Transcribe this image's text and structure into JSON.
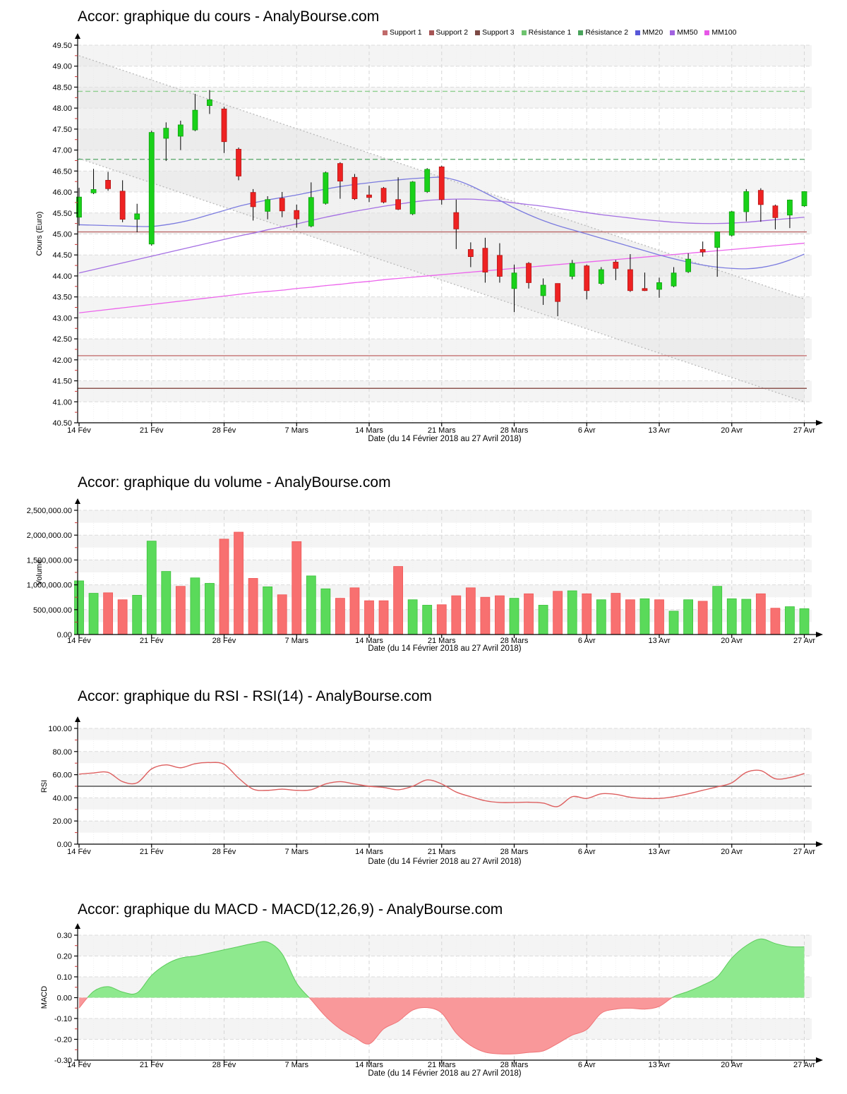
{
  "page": {
    "background": "#ffffff"
  },
  "xaxis": {
    "tick_days": [
      0,
      5,
      10,
      15,
      20,
      25,
      30,
      35,
      40,
      45,
      50
    ],
    "tick_labels": [
      "14 Fév",
      "21 Fév",
      "28 Fév",
      "7 Mars",
      "14 Mars",
      "21 Mars",
      "28 Mars",
      "6 Avr",
      "13 Avr",
      "20 Avr",
      "27 Avr"
    ],
    "n_days": 51
  },
  "chart_data": [
    {
      "type": "candlestick",
      "title": "Accor: graphique du cours - AnalyBourse.com",
      "ylabel": "Cours (Euro)",
      "xlabel": "Date (du 14 Février 2018 au 27 Avril 2018)",
      "ylim": [
        40.5,
        49.5
      ],
      "ytick": 0.5,
      "legend": [
        {
          "label": "Support 1",
          "color": "#c06a6a"
        },
        {
          "label": "Support 2",
          "color": "#a65454"
        },
        {
          "label": "Support 3",
          "color": "#7d4a45"
        },
        {
          "label": "Résistance 1",
          "color": "#6ec46e"
        },
        {
          "label": "Résistance 2",
          "color": "#4aa45c"
        },
        {
          "label": "MM20",
          "color": "#5757d8"
        },
        {
          "label": "MM50",
          "color": "#a263e0"
        },
        {
          "label": "MM100",
          "color": "#e757e7"
        }
      ],
      "supports": [
        {
          "label": "Support 1",
          "value": 45.05,
          "color": "#bb6868"
        },
        {
          "label": "Support 2",
          "value": 42.1,
          "color": "#c47272"
        },
        {
          "label": "Support 3",
          "value": 41.32,
          "color": "#8e5752"
        }
      ],
      "resistances": [
        {
          "label": "Résistance 1",
          "value": 48.4,
          "color": "#8fce8f"
        },
        {
          "label": "Résistance 2",
          "value": 46.78,
          "color": "#63ad74"
        }
      ],
      "channel": {
        "upper": [
          49.25,
          43.45
        ],
        "lower": [
          46.8,
          41.0
        ],
        "fill": "#e4e4e4",
        "line_color": "#bdbdbd"
      },
      "colors": {
        "up_fill": "#19d119",
        "up_stroke": "#0da00d",
        "down_fill": "#ee2222",
        "down_stroke": "#b31414"
      },
      "candles": [
        [
          45.4,
          46.1,
          45.2,
          45.88,
          "g"
        ],
        [
          45.98,
          46.55,
          45.95,
          46.06,
          "g"
        ],
        [
          46.28,
          46.48,
          46.03,
          46.08,
          "r"
        ],
        [
          46.02,
          46.28,
          45.28,
          45.35,
          "r"
        ],
        [
          45.35,
          45.72,
          45.04,
          45.48,
          "g"
        ],
        [
          44.76,
          47.46,
          44.72,
          47.42,
          "g"
        ],
        [
          47.28,
          47.66,
          46.74,
          47.52,
          "g"
        ],
        [
          47.33,
          47.7,
          47.0,
          47.6,
          "g"
        ],
        [
          47.48,
          48.34,
          47.45,
          47.95,
          "g"
        ],
        [
          48.06,
          48.43,
          47.86,
          48.2,
          "g"
        ],
        [
          47.98,
          48.03,
          46.93,
          47.2,
          "r"
        ],
        [
          47.02,
          47.06,
          46.28,
          46.38,
          "r"
        ],
        [
          45.99,
          46.07,
          45.32,
          45.65,
          "r"
        ],
        [
          45.54,
          45.9,
          45.35,
          45.82,
          "g"
        ],
        [
          45.85,
          46.0,
          45.4,
          45.55,
          "r"
        ],
        [
          45.56,
          45.7,
          45.15,
          45.36,
          "r"
        ],
        [
          45.19,
          46.23,
          45.16,
          45.87,
          "g"
        ],
        [
          45.73,
          46.49,
          45.7,
          46.46,
          "g"
        ],
        [
          46.68,
          46.71,
          45.84,
          46.26,
          "r"
        ],
        [
          46.35,
          46.43,
          45.81,
          45.84,
          "r"
        ],
        [
          45.93,
          46.15,
          45.76,
          45.87,
          "r"
        ],
        [
          46.09,
          46.12,
          45.73,
          45.76,
          "r"
        ],
        [
          45.82,
          46.35,
          45.57,
          45.59,
          "r"
        ],
        [
          45.48,
          46.26,
          45.45,
          46.24,
          "g"
        ],
        [
          46.01,
          46.57,
          45.98,
          46.54,
          "g"
        ],
        [
          46.6,
          46.63,
          45.7,
          45.82,
          "r"
        ],
        [
          45.51,
          45.82,
          44.64,
          45.12,
          "r"
        ],
        [
          44.63,
          44.8,
          44.21,
          44.46,
          "r"
        ],
        [
          44.66,
          44.91,
          43.84,
          44.09,
          "r"
        ],
        [
          44.49,
          44.78,
          43.84,
          43.99,
          "r"
        ],
        [
          43.7,
          44.27,
          43.14,
          44.07,
          "g"
        ],
        [
          44.3,
          44.33,
          43.7,
          43.84,
          "r"
        ],
        [
          43.53,
          43.94,
          43.31,
          43.78,
          "g"
        ],
        [
          43.82,
          43.82,
          43.04,
          43.39,
          "r"
        ],
        [
          43.99,
          44.38,
          43.92,
          44.3,
          "g"
        ],
        [
          44.24,
          44.27,
          43.44,
          43.65,
          "r"
        ],
        [
          43.82,
          44.21,
          43.79,
          44.15,
          "g"
        ],
        [
          44.33,
          44.38,
          43.9,
          44.18,
          "r"
        ],
        [
          44.15,
          44.52,
          43.62,
          43.65,
          "r"
        ],
        [
          43.7,
          44.08,
          43.64,
          43.65,
          "r"
        ],
        [
          43.68,
          43.96,
          43.48,
          43.84,
          "g"
        ],
        [
          43.76,
          44.21,
          43.73,
          44.07,
          "g"
        ],
        [
          44.1,
          44.54,
          44.07,
          44.4,
          "g"
        ],
        [
          44.63,
          44.82,
          44.46,
          44.57,
          "r"
        ],
        [
          44.68,
          45.06,
          43.98,
          45.05,
          "g"
        ],
        [
          44.97,
          45.55,
          44.94,
          45.53,
          "g"
        ],
        [
          45.53,
          46.07,
          45.3,
          46.01,
          "g"
        ],
        [
          46.04,
          46.09,
          45.29,
          45.7,
          "r"
        ],
        [
          45.67,
          45.7,
          45.11,
          45.39,
          "r"
        ],
        [
          45.45,
          45.82,
          45.14,
          45.81,
          "g"
        ],
        [
          45.67,
          46.02,
          45.65,
          46.01,
          "g"
        ]
      ],
      "overlays": {
        "mm20": {
          "label": "MM20",
          "color": "#7b7bdf",
          "values": [
            45.22,
            45.21,
            45.2,
            45.19,
            45.18,
            45.18,
            45.22,
            45.28,
            45.36,
            45.46,
            45.56,
            45.66,
            45.74,
            45.81,
            45.87,
            45.93,
            46.0,
            46.07,
            46.13,
            46.18,
            46.22,
            46.26,
            46.29,
            46.32,
            46.34,
            46.35,
            46.28,
            46.15,
            45.98,
            45.8,
            45.62,
            45.46,
            45.32,
            45.2,
            45.1,
            45.0,
            44.9,
            44.8,
            44.7,
            44.6,
            44.5,
            44.41,
            44.33,
            44.26,
            44.21,
            44.18,
            44.17,
            44.2,
            44.27,
            44.38,
            44.52
          ]
        },
        "mm50": {
          "label": "MM50",
          "color": "#a46fe3",
          "values": [
            44.07,
            44.15,
            44.23,
            44.31,
            44.39,
            44.47,
            44.55,
            44.63,
            44.71,
            44.79,
            44.87,
            44.95,
            45.02,
            45.1,
            45.17,
            45.24,
            45.32,
            45.4,
            45.47,
            45.54,
            45.6,
            45.66,
            45.71,
            45.76,
            45.8,
            45.82,
            45.83,
            45.83,
            45.81,
            45.78,
            45.74,
            45.7,
            45.66,
            45.61,
            45.56,
            45.51,
            45.46,
            45.42,
            45.38,
            45.34,
            45.31,
            45.28,
            45.26,
            45.25,
            45.25,
            45.26,
            45.28,
            45.31,
            45.34,
            45.37,
            45.4
          ]
        },
        "mm100": {
          "label": "MM100",
          "color": "#ec64ec",
          "values": [
            43.12,
            43.16,
            43.2,
            43.24,
            43.28,
            43.32,
            43.36,
            43.4,
            43.44,
            43.48,
            43.52,
            43.56,
            43.6,
            43.63,
            43.66,
            43.7,
            43.73,
            43.77,
            43.8,
            43.84,
            43.87,
            43.91,
            43.94,
            43.97,
            44.0,
            44.03,
            44.06,
            44.09,
            44.12,
            44.15,
            44.18,
            44.21,
            44.24,
            44.27,
            44.3,
            44.33,
            44.36,
            44.39,
            44.42,
            44.45,
            44.48,
            44.51,
            44.54,
            44.57,
            44.6,
            44.63,
            44.66,
            44.69,
            44.72,
            44.75,
            44.78
          ]
        }
      }
    },
    {
      "type": "bar",
      "title": "Accor: graphique du volume - AnalyBourse.com",
      "ylabel": "Volume",
      "xlabel": "Date (du 14 Février 2018 au 27 Avril 2018)",
      "ylim": [
        0,
        2500000
      ],
      "ytick": 500000,
      "colors": {
        "up_fill": "#5ada5a",
        "up_stroke": "#3cc23c",
        "down_fill": "#f87070",
        "down_stroke": "#ef5858"
      },
      "values": [
        [
          1080000,
          "g"
        ],
        [
          830000,
          "g"
        ],
        [
          840000,
          "r"
        ],
        [
          700000,
          "r"
        ],
        [
          790000,
          "g"
        ],
        [
          1880000,
          "g"
        ],
        [
          1270000,
          "g"
        ],
        [
          970000,
          "r"
        ],
        [
          1140000,
          "g"
        ],
        [
          1030000,
          "g"
        ],
        [
          1920000,
          "r"
        ],
        [
          2060000,
          "r"
        ],
        [
          1130000,
          "r"
        ],
        [
          960000,
          "g"
        ],
        [
          800000,
          "r"
        ],
        [
          1870000,
          "r"
        ],
        [
          1180000,
          "g"
        ],
        [
          920000,
          "g"
        ],
        [
          730000,
          "r"
        ],
        [
          940000,
          "r"
        ],
        [
          680000,
          "r"
        ],
        [
          680000,
          "r"
        ],
        [
          1370000,
          "r"
        ],
        [
          700000,
          "g"
        ],
        [
          590000,
          "g"
        ],
        [
          600000,
          "r"
        ],
        [
          780000,
          "r"
        ],
        [
          940000,
          "r"
        ],
        [
          750000,
          "r"
        ],
        [
          780000,
          "r"
        ],
        [
          730000,
          "g"
        ],
        [
          820000,
          "r"
        ],
        [
          590000,
          "g"
        ],
        [
          870000,
          "r"
        ],
        [
          880000,
          "g"
        ],
        [
          820000,
          "r"
        ],
        [
          700000,
          "g"
        ],
        [
          830000,
          "r"
        ],
        [
          700000,
          "r"
        ],
        [
          720000,
          "g"
        ],
        [
          700000,
          "r"
        ],
        [
          470000,
          "g"
        ],
        [
          700000,
          "g"
        ],
        [
          670000,
          "r"
        ],
        [
          970000,
          "g"
        ],
        [
          720000,
          "g"
        ],
        [
          710000,
          "g"
        ],
        [
          820000,
          "r"
        ],
        [
          530000,
          "r"
        ],
        [
          560000,
          "g"
        ],
        [
          520000,
          "g"
        ]
      ]
    },
    {
      "type": "line",
      "title": "Accor: graphique du RSI - RSI(14) - AnalyBourse.com",
      "ylabel": "RSI",
      "xlabel": "Date (du 14 Février 2018 au 27 Avril 2018)",
      "ylim": [
        0,
        100
      ],
      "ytick": 20,
      "midline": 50,
      "color": "#dd5f5f",
      "values": [
        60.5,
        61.5,
        62,
        54,
        53,
        65,
        68.5,
        66,
        69.5,
        70.5,
        69,
        57,
        47.5,
        46.5,
        47.5,
        46.5,
        47,
        52,
        54,
        52,
        50,
        49,
        47,
        50,
        55.5,
        52,
        45,
        41,
        37.5,
        36,
        36,
        36.2,
        35.5,
        32.5,
        41,
        39.5,
        43.5,
        43,
        40.5,
        39.5,
        39.5,
        41,
        43.5,
        46.5,
        49.5,
        53,
        62,
        63.5,
        56.5,
        57.5,
        61
      ]
    },
    {
      "type": "area",
      "title": "Accor: graphique du MACD - MACD(12,26,9) - AnalyBourse.com",
      "ylabel": "MACD",
      "xlabel": "Date (du 14 Février 2018 au 27 Avril 2018)",
      "ylim": [
        -0.3,
        0.3
      ],
      "ytick": 0.1,
      "colors": {
        "pos_fill": "#8ee98e",
        "pos_stroke": "#5ccc5c",
        "neg_fill": "#f9989a",
        "neg_stroke": "#f07578"
      },
      "values": [
        -0.05,
        0.03,
        0.053,
        0.027,
        0.023,
        0.107,
        0.16,
        0.19,
        0.2,
        0.215,
        0.23,
        0.245,
        0.26,
        0.267,
        0.21,
        0.07,
        -0.01,
        -0.09,
        -0.15,
        -0.19,
        -0.222,
        -0.15,
        -0.114,
        -0.06,
        -0.048,
        -0.074,
        -0.17,
        -0.23,
        -0.262,
        -0.27,
        -0.27,
        -0.263,
        -0.256,
        -0.22,
        -0.18,
        -0.153,
        -0.075,
        -0.055,
        -0.051,
        -0.055,
        -0.042,
        0.005,
        0.03,
        0.06,
        0.1,
        0.19,
        0.25,
        0.282,
        0.26,
        0.245,
        0.244
      ]
    }
  ]
}
